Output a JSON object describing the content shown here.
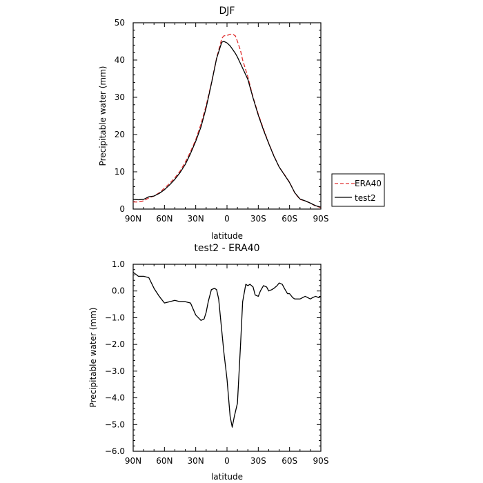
{
  "chart_data": [
    {
      "type": "line",
      "title": "DJF",
      "xlabel": "latitude",
      "ylabel": "Precipitable water  (mm)",
      "xlim": [
        90,
        -90
      ],
      "ylim": [
        0,
        50
      ],
      "x_ticks": [
        90,
        60,
        30,
        0,
        -30,
        -60,
        -90
      ],
      "x_tick_labels": [
        "90N",
        "60N",
        "30N",
        "0",
        "30S",
        "60S",
        "90S"
      ],
      "y_ticks": [
        0,
        10,
        20,
        30,
        40,
        50
      ],
      "y_tick_labels": [
        "0",
        "10",
        "20",
        "30",
        "40",
        "50"
      ],
      "legend_position": "right",
      "series": [
        {
          "name": "ERA40",
          "color": "#e03030",
          "dash": true,
          "x": [
            90,
            85,
            80,
            75,
            70,
            65,
            60,
            55,
            50,
            45,
            40,
            35,
            30,
            25,
            20,
            15,
            10,
            5,
            3,
            0,
            -3,
            -5,
            -8,
            -10,
            -13,
            -15,
            -20,
            -25,
            -30,
            -35,
            -40,
            -45,
            -50,
            -55,
            -60,
            -65,
            -70,
            -75,
            -80,
            -85,
            -90
          ],
          "y": [
            1.9,
            1.9,
            2.2,
            3.0,
            3.5,
            4.4,
            5.6,
            6.9,
            8.4,
            10.2,
            12.6,
            15.4,
            18.6,
            22.8,
            27.8,
            33.8,
            40.5,
            45.8,
            46.5,
            46.6,
            46.9,
            47.0,
            46.5,
            45.0,
            42.5,
            40.0,
            35.5,
            30.0,
            25.5,
            21.5,
            17.7,
            14.3,
            11.3,
            9.3,
            7.2,
            4.3,
            2.6,
            2.2,
            1.6,
            0.8,
            0.4
          ]
        },
        {
          "name": "test2",
          "color": "#000000",
          "dash": false,
          "x": [
            90,
            85,
            80,
            75,
            70,
            65,
            60,
            55,
            50,
            45,
            40,
            35,
            30,
            25,
            20,
            15,
            10,
            5,
            3,
            0,
            -3,
            -5,
            -8,
            -10,
            -13,
            -15,
            -20,
            -25,
            -30,
            -35,
            -40,
            -45,
            -50,
            -55,
            -60,
            -65,
            -70,
            -75,
            -80,
            -85,
            -90
          ],
          "y": [
            2.6,
            2.5,
            2.6,
            3.3,
            3.5,
            4.2,
            5.2,
            6.5,
            8.0,
            9.8,
            12.0,
            14.9,
            18.2,
            22.0,
            27.2,
            33.6,
            40.4,
            44.8,
            45.0,
            44.6,
            43.8,
            43.0,
            41.8,
            40.8,
            39.0,
            37.8,
            34.8,
            29.8,
            25.2,
            21.2,
            17.6,
            14.2,
            11.3,
            9.2,
            7.1,
            4.4,
            2.7,
            2.2,
            1.6,
            0.9,
            0.5
          ]
        }
      ]
    },
    {
      "type": "line",
      "title": "test2 - ERA40",
      "xlabel": "latitude",
      "ylabel": "Precipitable water  (mm)",
      "xlim": [
        90,
        -90
      ],
      "ylim": [
        -6,
        1
      ],
      "x_ticks": [
        90,
        60,
        30,
        0,
        -30,
        -60,
        -90
      ],
      "x_tick_labels": [
        "90N",
        "60N",
        "30N",
        "0",
        "30S",
        "60S",
        "90S"
      ],
      "y_ticks": [
        1,
        0,
        -1,
        -2,
        -3,
        -4,
        -5,
        -6
      ],
      "y_tick_labels": [
        "1.0",
        "0.0",
        "−1.0",
        "−2.0",
        "−3.0",
        "−4.0",
        "−5.0",
        "−6.0"
      ],
      "series": [
        {
          "color": "#000000",
          "dash": false,
          "x": [
            90,
            85,
            80,
            75,
            70,
            65,
            60,
            55,
            50,
            45,
            40,
            35,
            30,
            25,
            22,
            20,
            18,
            15,
            12,
            10,
            8,
            5,
            3,
            0,
            -3,
            -5,
            -7,
            -10,
            -13,
            -15,
            -18,
            -20,
            -22,
            -25,
            -27,
            -30,
            -32,
            -35,
            -38,
            -40,
            -43,
            -45,
            -48,
            -50,
            -53,
            -55,
            -58,
            -60,
            -63,
            -65,
            -70,
            -75,
            -80,
            -82,
            -85,
            -88,
            -90
          ],
          "y": [
            0.7,
            0.55,
            0.55,
            0.5,
            0.1,
            -0.2,
            -0.45,
            -0.4,
            -0.35,
            -0.4,
            -0.4,
            -0.45,
            -0.9,
            -1.1,
            -1.05,
            -0.8,
            -0.4,
            0.05,
            0.1,
            0.05,
            -0.3,
            -1.5,
            -2.3,
            -3.3,
            -4.7,
            -5.1,
            -4.7,
            -4.2,
            -2.0,
            -0.4,
            0.25,
            0.2,
            0.25,
            0.15,
            -0.15,
            -0.2,
            0.0,
            0.2,
            0.15,
            0.0,
            0.05,
            0.1,
            0.2,
            0.3,
            0.25,
            0.1,
            -0.1,
            -0.1,
            -0.25,
            -0.3,
            -0.3,
            -0.2,
            -0.3,
            -0.25,
            -0.2,
            -0.25,
            -0.2
          ]
        }
      ]
    }
  ]
}
